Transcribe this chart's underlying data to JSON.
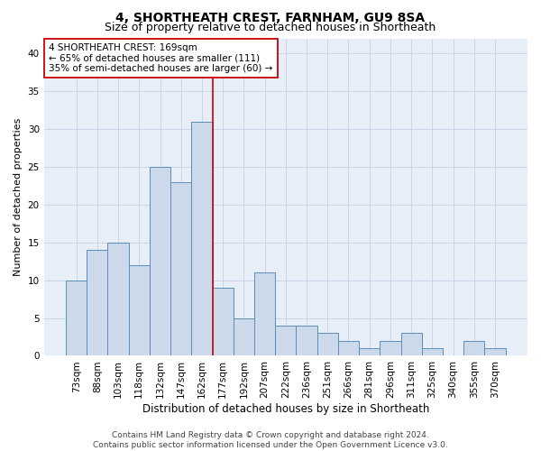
{
  "title": "4, SHORTHEATH CREST, FARNHAM, GU9 8SA",
  "subtitle": "Size of property relative to detached houses in Shortheath",
  "xlabel": "Distribution of detached houses by size in Shortheath",
  "ylabel": "Number of detached properties",
  "categories": [
    "73sqm",
    "88sqm",
    "103sqm",
    "118sqm",
    "132sqm",
    "147sqm",
    "162sqm",
    "177sqm",
    "192sqm",
    "207sqm",
    "222sqm",
    "236sqm",
    "251sqm",
    "266sqm",
    "281sqm",
    "296sqm",
    "311sqm",
    "325sqm",
    "340sqm",
    "355sqm",
    "370sqm"
  ],
  "values": [
    10,
    14,
    15,
    12,
    25,
    23,
    31,
    9,
    5,
    11,
    4,
    4,
    3,
    2,
    1,
    2,
    3,
    1,
    0,
    2,
    1
  ],
  "bar_color": "#ccd9ea",
  "bar_edge_color": "#5b8db8",
  "vline_x": 6.5,
  "vline_color": "#cc0000",
  "annotation_line1": "4 SHORTHEATH CREST: 169sqm",
  "annotation_line2": "← 65% of detached houses are smaller (111)",
  "annotation_line3": "35% of semi-detached houses are larger (60) →",
  "annotation_box_color": "#ffffff",
  "annotation_box_edge_color": "#cc0000",
  "ylim": [
    0,
    42
  ],
  "yticks": [
    0,
    5,
    10,
    15,
    20,
    25,
    30,
    35,
    40
  ],
  "grid_color": "#c8d4e8",
  "background_color": "#e8eef8",
  "footer": "Contains HM Land Registry data © Crown copyright and database right 2024.\nContains public sector information licensed under the Open Government Licence v3.0.",
  "title_fontsize": 10,
  "subtitle_fontsize": 9,
  "xlabel_fontsize": 8.5,
  "ylabel_fontsize": 8,
  "tick_fontsize": 7.5,
  "annotation_fontsize": 7.5,
  "footer_fontsize": 6.5
}
